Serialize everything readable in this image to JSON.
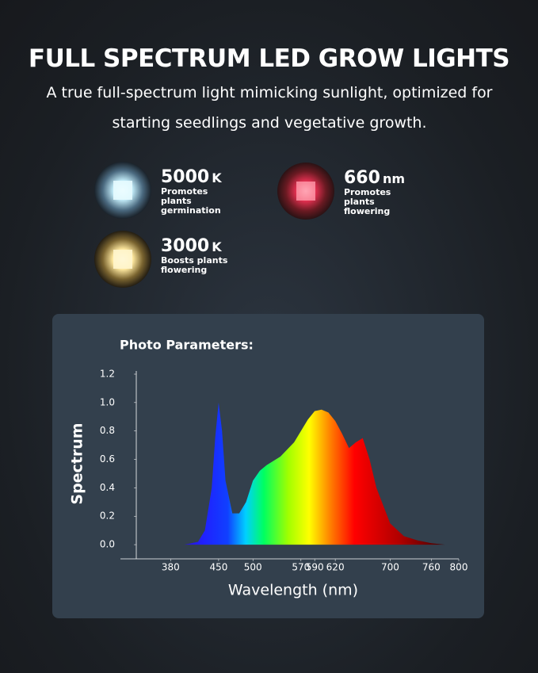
{
  "header": {
    "title": "FULL SPECTRUM LED GROW LIGHTS",
    "subtitle": "A true full-spectrum light mimicking sunlight, optimized for starting seedlings and vegetative growth."
  },
  "features": [
    {
      "value": "5000",
      "unit": "K",
      "description": "Promotes plants germination"
    },
    {
      "value": "660",
      "unit": "nm",
      "description": "Promotes plants flowering"
    },
    {
      "value": "3000",
      "unit": "K",
      "description": "Boosts plants flowering"
    }
  ],
  "chart_data": {
    "type": "area",
    "title": "Photo Parameters:",
    "xlabel": "Wavelength (nm)",
    "ylabel": "Spectrum",
    "x": [
      340,
      400,
      420,
      430,
      440,
      445,
      450,
      455,
      460,
      470,
      480,
      490,
      500,
      510,
      520,
      540,
      560,
      580,
      590,
      600,
      610,
      620,
      630,
      640,
      650,
      660,
      670,
      680,
      700,
      720,
      740,
      760,
      780
    ],
    "values": [
      0,
      0,
      0.02,
      0.1,
      0.4,
      0.75,
      1.0,
      0.8,
      0.45,
      0.22,
      0.22,
      0.3,
      0.45,
      0.52,
      0.56,
      0.62,
      0.72,
      0.88,
      0.94,
      0.95,
      0.93,
      0.87,
      0.78,
      0.68,
      0.72,
      0.75,
      0.6,
      0.4,
      0.15,
      0.06,
      0.03,
      0.01,
      0
    ],
    "xlim": [
      330,
      800
    ],
    "ylim": [
      -0.1,
      1.2
    ],
    "xticks": [
      380,
      450,
      500,
      570,
      590,
      620,
      700,
      760,
      800
    ],
    "yticks": [
      {
        "value": 0,
        "label": "0.0"
      },
      0.2,
      0.4,
      0.6,
      0.8,
      {
        "value": 1,
        "label": "1.0"
      },
      1.2
    ]
  }
}
